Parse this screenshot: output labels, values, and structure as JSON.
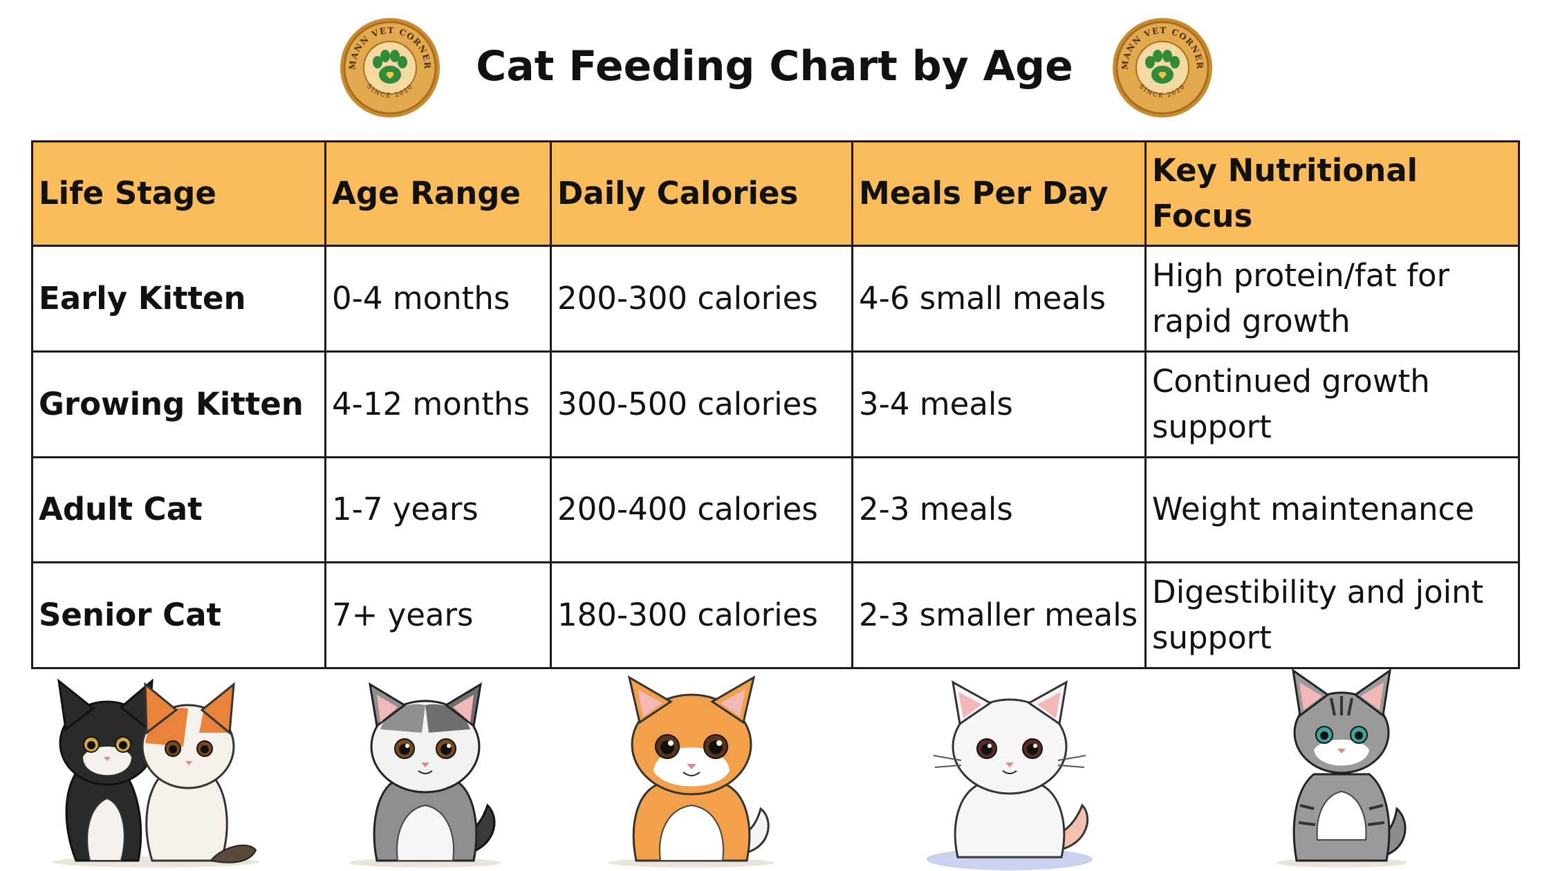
{
  "header": {
    "title": "Cat Feeding Chart by Age",
    "logo": {
      "icon": "paw-icon",
      "text_top": "MANN VET CORNER",
      "text_bottom": "SINCE 2020"
    }
  },
  "table": {
    "headers": [
      "Life Stage",
      "Age Range",
      "Daily Calories",
      "Meals Per Day",
      "Key Nutritional Focus"
    ],
    "rows": [
      [
        "Early Kitten",
        "0-4 months",
        "200-300 calories",
        "4-6 small meals",
        "High protein/fat for rapid growth"
      ],
      [
        "Growing Kitten",
        "4-12 months",
        "300-500 calories",
        "3-4 meals",
        "Continued growth support"
      ],
      [
        "Adult Cat",
        "1-7 years",
        "200-400 calories",
        "2-3 meals",
        "Weight maintenance"
      ],
      [
        "Senior Cat",
        "7+ years",
        "180-300 calories",
        "2-3 smaller meals",
        "Digestibility and joint support"
      ]
    ]
  },
  "colors": {
    "header_fill": "#fbbd5b",
    "logo_gold": "#d99a3c",
    "logo_paw": "#2f8a3a",
    "border": "#1a1a1a"
  },
  "illustrations": [
    "two-kittens-illustration",
    "grey-kitten-illustration",
    "orange-kitten-illustration",
    "white-kitten-illustration",
    "tabby-cat-illustration"
  ]
}
